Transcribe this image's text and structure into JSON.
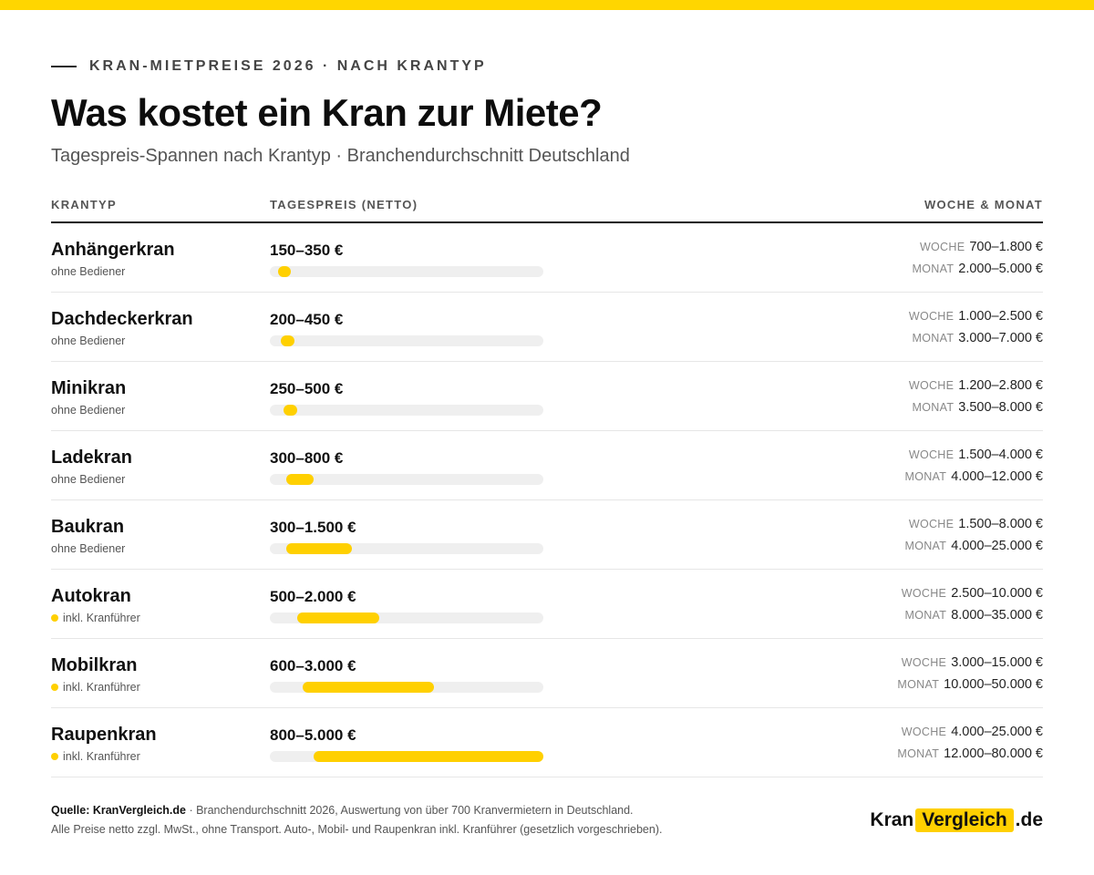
{
  "header": {
    "eyebrow": "KRAN-MIETPREISE 2026 · NACH KRANTYP",
    "title": "Was kostet ein Kran zur Miete?",
    "subtitle": "Tagespreis-Spannen nach Krantyp · Branchendurchschnitt Deutschland"
  },
  "table": {
    "col_type": "KRANTYP",
    "col_day": "TAGESPREIS (NETTO)",
    "col_week_month": "WOCHE & MONAT",
    "week_label": "WOCHE",
    "month_label": "MONAT"
  },
  "chart_data": {
    "type": "bar",
    "orientation": "horizontal range",
    "unit": "€",
    "xlim": [
      0,
      5000
    ],
    "accent_color": "#ffd000",
    "track_color": "#efefef",
    "categories": [
      "Anhängerkran",
      "Dachdeckerkran",
      "Minikran",
      "Ladekran",
      "Baukran",
      "Autokran",
      "Mobilkran",
      "Raupenkran"
    ],
    "rows": [
      {
        "name": "Anhängerkran",
        "note": "ohne Bediener",
        "operator_included": false,
        "day_min": 150,
        "day_max": 350,
        "day_text": "150–350 €",
        "week_text": "700–1.800 €",
        "month_text": "2.000–5.000 €"
      },
      {
        "name": "Dachdeckerkran",
        "note": "ohne Bediener",
        "operator_included": false,
        "day_min": 200,
        "day_max": 450,
        "day_text": "200–450 €",
        "week_text": "1.000–2.500 €",
        "month_text": "3.000–7.000 €"
      },
      {
        "name": "Minikran",
        "note": "ohne Bediener",
        "operator_included": false,
        "day_min": 250,
        "day_max": 500,
        "day_text": "250–500 €",
        "week_text": "1.200–2.800 €",
        "month_text": "3.500–8.000 €"
      },
      {
        "name": "Ladekran",
        "note": "ohne Bediener",
        "operator_included": false,
        "day_min": 300,
        "day_max": 800,
        "day_text": "300–800 €",
        "week_text": "1.500–4.000 €",
        "month_text": "4.000–12.000 €"
      },
      {
        "name": "Baukran",
        "note": "ohne Bediener",
        "operator_included": false,
        "day_min": 300,
        "day_max": 1500,
        "day_text": "300–1.500 €",
        "week_text": "1.500–8.000 €",
        "month_text": "4.000–25.000 €"
      },
      {
        "name": "Autokran",
        "note": "inkl. Kranführer",
        "operator_included": true,
        "day_min": 500,
        "day_max": 2000,
        "day_text": "500–2.000 €",
        "week_text": "2.500–10.000 €",
        "month_text": "8.000–35.000 €"
      },
      {
        "name": "Mobilkran",
        "note": "inkl. Kranführer",
        "operator_included": true,
        "day_min": 600,
        "day_max": 3000,
        "day_text": "600–3.000 €",
        "week_text": "3.000–15.000 €",
        "month_text": "10.000–50.000 €"
      },
      {
        "name": "Raupenkran",
        "note": "inkl. Kranführer",
        "operator_included": true,
        "day_min": 800,
        "day_max": 5000,
        "day_text": "800–5.000 €",
        "week_text": "4.000–25.000 €",
        "month_text": "12.000–80.000 €"
      }
    ]
  },
  "footer": {
    "source_label": "Quelle: KranVergleich.de",
    "line1": " · Branchendurchschnitt 2026, Auswertung von über 700 Kranvermietern in Deutschland.",
    "line2": "Alle Preise netto zzgl. MwSt., ohne Transport. Auto-, Mobil- und Raupenkran inkl. Kranführer (gesetzlich vorgeschrieben)."
  },
  "logo": {
    "part1": "Kran",
    "part2": "Vergleich",
    "part3": ".de"
  }
}
